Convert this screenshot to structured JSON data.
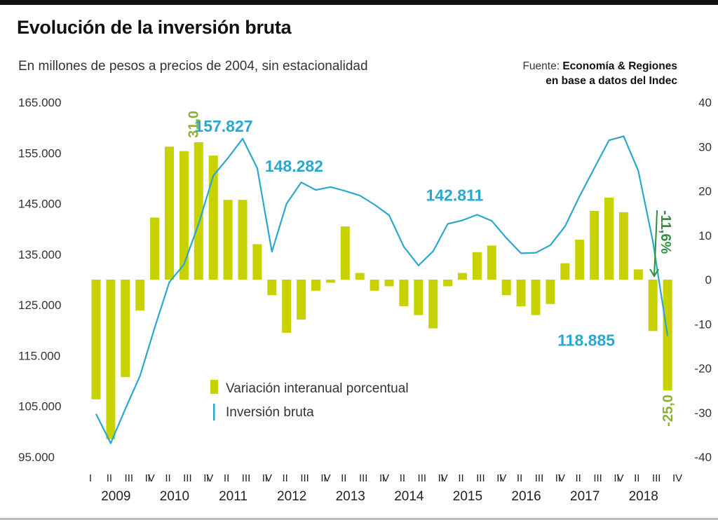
{
  "header": {
    "title": "Evolución de la inversión bruta",
    "subtitle": "En millones de pesos a precios de 2004, sin estacionalidad",
    "source_prefix": "Fuente: ",
    "source_name": "Economía & Regiones",
    "source_line2": "en base a datos del Indec"
  },
  "colors": {
    "bar": "#c8d200",
    "line": "#2aa7cf",
    "bar_label": "#8ab13a",
    "arrow": "#2f8f3f"
  },
  "chart_data": {
    "type": "bar",
    "title": "Evolución de la inversión bruta",
    "subtitle": "En millones de pesos a precios de 2004, sin estacionalidad",
    "quarters": [
      "I",
      "II",
      "III",
      "IV",
      "I",
      "II",
      "III",
      "IV",
      "I",
      "II",
      "III",
      "IV",
      "I",
      "II",
      "III",
      "IV",
      "I",
      "II",
      "III",
      "IV",
      "I",
      "II",
      "III",
      "IV",
      "I",
      "II",
      "III",
      "IV",
      "I",
      "II",
      "III",
      "IV",
      "I",
      "II",
      "III",
      "IV",
      "I",
      "II",
      "III",
      "IV"
    ],
    "years": [
      "2009",
      "2010",
      "2011",
      "2012",
      "2013",
      "2014",
      "2015",
      "2016",
      "2017",
      "2018"
    ],
    "y_left": {
      "min": 95000,
      "max": 165000,
      "ticks": [
        "165.000",
        "155.000",
        "145.000",
        "135.000",
        "125.000",
        "115.000",
        "105.000",
        "95.000"
      ]
    },
    "y_right": {
      "min": -40,
      "max": 40,
      "ticks": [
        "40",
        "30",
        "20",
        "10",
        "0",
        "-10",
        "-20",
        "-30",
        "-40"
      ]
    },
    "series": [
      {
        "name": "Variación interanual porcentual",
        "type": "bar",
        "axis": "right",
        "values": [
          -27,
          -36,
          -22,
          -7,
          14,
          30,
          29,
          31,
          28,
          18,
          18,
          8,
          -3.5,
          -12,
          -9,
          -2.5,
          -0.7,
          12,
          1.5,
          -2.5,
          -1.5,
          -6,
          -8,
          -11,
          -1.5,
          1.5,
          6.2,
          7.7,
          -3.5,
          -6,
          -8,
          -5.5,
          3.7,
          9,
          15.5,
          18.5,
          15.2,
          2.3,
          -11.6,
          -25
        ]
      },
      {
        "name": "Inversión bruta",
        "type": "line",
        "axis": "left",
        "values": [
          103500,
          97700,
          104500,
          111000,
          120500,
          129500,
          133000,
          141000,
          150500,
          154000,
          157827,
          152000,
          135500,
          145000,
          149200,
          147700,
          148282,
          147500,
          146600,
          144800,
          142700,
          136500,
          132800,
          135600,
          141000,
          141700,
          142811,
          141600,
          138200,
          135200,
          135300,
          136800,
          140500,
          146500,
          152000,
          157500,
          158300,
          151500,
          137500,
          118885
        ]
      }
    ],
    "annotations": [
      {
        "text": "31,0",
        "series": "bar",
        "index": 7
      },
      {
        "text": "157.827",
        "series": "line",
        "index": 10
      },
      {
        "text": "148.282",
        "series": "line",
        "index": 16
      },
      {
        "text": "142.811",
        "series": "line",
        "index": 26
      },
      {
        "text": "118.885",
        "series": "line",
        "index": 39
      },
      {
        "text": "-25,0",
        "series": "bar",
        "index": 39
      },
      {
        "text": "-11,6%",
        "series": "bar",
        "index": 38
      }
    ],
    "legend": {
      "placement": "center-bottom"
    }
  },
  "legend": {
    "bar_label": "Variación interanual porcentual",
    "line_label": "Inversión bruta"
  }
}
